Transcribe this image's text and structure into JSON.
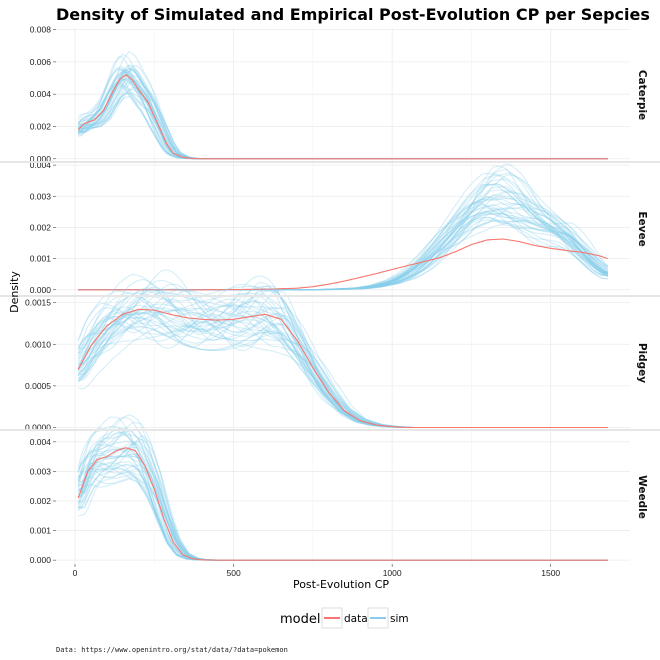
{
  "chart_data": {
    "type": "line",
    "title": "Density of Simulated and Empirical Post-Evolution CP per Sepcies",
    "xlabel": "Post-Evolution CP",
    "ylabel": "Density",
    "xlim": [
      -60,
      1750
    ],
    "x_ticks": [
      0,
      500,
      1000,
      1500
    ],
    "x_tick_labels": [
      "0",
      "500",
      "1000",
      "1500"
    ],
    "legend": {
      "title": "model",
      "entries": [
        {
          "name": "data",
          "color": "#F8766D"
        },
        {
          "name": "sim",
          "color": "#87CEEB"
        }
      ]
    },
    "caption": "Data: https://www.openintro.org/stat/data/?data=pokemon",
    "colors": {
      "data": "#F8766D",
      "sim": "#87CEEB",
      "divider": "#e6e6e6"
    },
    "sim_curve_count": 40,
    "panels": [
      {
        "strip": "Caterpie",
        "ylim": [
          -0.0002,
          0.0081
        ],
        "y_ticks": [
          0,
          0.002,
          0.004,
          0.006,
          0.008
        ],
        "y_tick_labels": [
          "0.000",
          "0.002",
          "0.004",
          "0.006",
          "0.008"
        ],
        "data_x": [
          10,
          30,
          60,
          90,
          120,
          140,
          160,
          180,
          200,
          230,
          260,
          290,
          310,
          340,
          370,
          400,
          450,
          500,
          1000,
          1500,
          1680
        ],
        "data_y": [
          0.0018,
          0.0022,
          0.0024,
          0.003,
          0.0042,
          0.0049,
          0.0052,
          0.0049,
          0.0043,
          0.0035,
          0.0022,
          0.0009,
          0.00035,
          8e-05,
          2e-05,
          0,
          0,
          0,
          0,
          0,
          0
        ]
      },
      {
        "strip": "Eevee",
        "ylim": [
          -0.0002,
          0.0041
        ],
        "y_ticks": [
          0,
          0.001,
          0.002,
          0.003,
          0.004
        ],
        "y_tick_labels": [
          "0.000",
          "0.001",
          "0.002",
          "0.003",
          "0.004"
        ],
        "data_x": [
          10,
          400,
          500,
          600,
          700,
          750,
          800,
          850,
          900,
          950,
          1000,
          1050,
          1100,
          1150,
          1200,
          1250,
          1300,
          1350,
          1400,
          1450,
          1500,
          1550,
          1600,
          1650,
          1680
        ],
        "data_y": [
          0,
          0,
          5e-06,
          2e-05,
          5e-05,
          0.0001,
          0.00018,
          0.00028,
          0.0004,
          0.00052,
          0.00065,
          0.00078,
          0.0009,
          0.00103,
          0.00122,
          0.00145,
          0.0016,
          0.00163,
          0.00155,
          0.00142,
          0.00133,
          0.00126,
          0.0012,
          0.0011,
          0.001
        ],
        "sim_x": [
          10,
          700,
          800,
          900,
          950,
          1000,
          1050,
          1100,
          1150,
          1200,
          1250,
          1300,
          1350,
          1400,
          1450,
          1500,
          1550,
          1600,
          1650,
          1680
        ],
        "sim_y": [
          0,
          0,
          1e-05,
          5e-05,
          0.00012,
          0.00025,
          0.0005,
          0.0009,
          0.0014,
          0.0019,
          0.0024,
          0.0028,
          0.0029,
          0.0027,
          0.0023,
          0.002,
          0.0017,
          0.0012,
          0.0007,
          0.0005
        ]
      },
      {
        "strip": "Pidgey",
        "ylim": [
          -3e-05,
          0.00158
        ],
        "y_ticks": [
          0,
          0.0005,
          0.001,
          0.0015
        ],
        "y_tick_labels": [
          "0.0000",
          "0.0005",
          "0.0010",
          "0.0015"
        ],
        "data_x": [
          10,
          50,
          100,
          150,
          200,
          250,
          300,
          350,
          400,
          450,
          500,
          550,
          600,
          650,
          700,
          750,
          800,
          850,
          900,
          950,
          1000,
          1050,
          1100,
          1500,
          1680
        ],
        "data_y": [
          0.0007,
          0.00098,
          0.00122,
          0.00136,
          0.00142,
          0.00141,
          0.00136,
          0.00132,
          0.0013,
          0.00129,
          0.0013,
          0.00133,
          0.00136,
          0.0013,
          0.00105,
          0.00072,
          0.00042,
          0.0002,
          8e-05,
          3e-05,
          1e-05,
          0,
          0,
          0,
          0
        ]
      },
      {
        "strip": "Weedle",
        "ylim": [
          -0.00013,
          0.0044
        ],
        "y_ticks": [
          0,
          0.001,
          0.002,
          0.003,
          0.004
        ],
        "y_tick_labels": [
          "0.000",
          "0.001",
          "0.002",
          "0.003",
          "0.004"
        ],
        "data_x": [
          10,
          40,
          70,
          100,
          130,
          160,
          190,
          220,
          250,
          280,
          310,
          340,
          370,
          400,
          450,
          500,
          1000,
          1500,
          1680
        ],
        "data_y": [
          0.0021,
          0.003,
          0.0034,
          0.0035,
          0.0037,
          0.0038,
          0.0037,
          0.0032,
          0.0024,
          0.0014,
          0.0006,
          0.00018,
          5e-05,
          1e-05,
          0,
          0,
          0,
          0,
          0
        ]
      }
    ]
  }
}
